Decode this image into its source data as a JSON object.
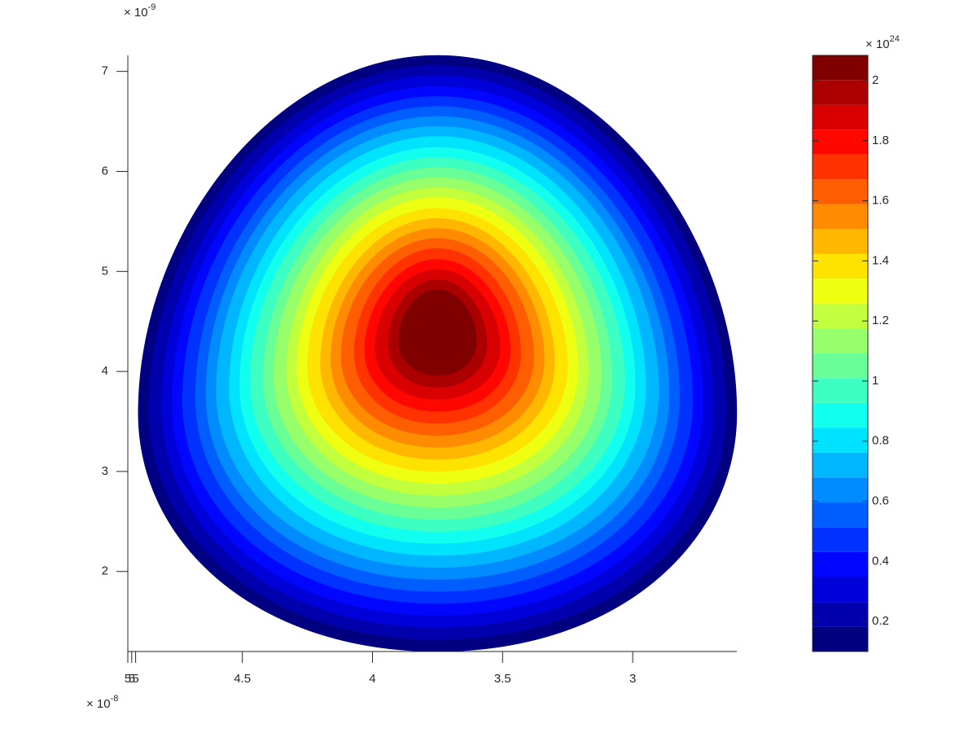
{
  "chart_data": {
    "type": "contourf",
    "colormap": "jet",
    "exponent_base": "× 10",
    "x_exponent": "-8",
    "y_exponent": "-9",
    "c_exponent": "24",
    "xlim": [
      4.94,
      2.6
    ],
    "xticks": [
      {
        "value": 4.94,
        "label": "5"
      },
      {
        "value": 4.925,
        "label": "5"
      },
      {
        "value": 4.91,
        "label": "5"
      },
      4.5,
      4,
      3.5,
      3
    ],
    "ylim": [
      1.2,
      7.16
    ],
    "yticks": [
      2,
      3,
      4,
      5,
      6,
      7
    ],
    "clim": [
      0.1,
      2.084
    ],
    "cticks": [
      0.2,
      0.4,
      0.6,
      0.8,
      1,
      1.2,
      1.4,
      1.6,
      1.8,
      2
    ],
    "contours": [
      {
        "level": 0.1,
        "xrange": [
          4.9,
          2.6
        ],
        "yrange": [
          1.2,
          7.16
        ]
      },
      {
        "level": 0.183,
        "xrange": [
          4.86,
          2.64
        ],
        "yrange": [
          1.32,
          7.06
        ]
      },
      {
        "level": 0.265,
        "xrange": [
          4.81,
          2.69
        ],
        "yrange": [
          1.44,
          6.96
        ]
      },
      {
        "level": 0.348,
        "xrange": [
          4.77,
          2.73
        ],
        "yrange": [
          1.56,
          6.85
        ]
      },
      {
        "level": 0.431,
        "xrange": [
          4.73,
          2.77
        ],
        "yrange": [
          1.68,
          6.75
        ]
      },
      {
        "level": 0.514,
        "xrange": [
          4.68,
          2.82
        ],
        "yrange": [
          1.8,
          6.65
        ]
      },
      {
        "level": 0.596,
        "xrange": [
          4.64,
          2.86
        ],
        "yrange": [
          1.92,
          6.55
        ]
      },
      {
        "level": 0.679,
        "xrange": [
          4.6,
          2.9
        ],
        "yrange": [
          2.04,
          6.45
        ]
      },
      {
        "level": 0.762,
        "xrange": [
          4.55,
          2.95
        ],
        "yrange": [
          2.16,
          6.35
        ]
      },
      {
        "level": 0.844,
        "xrange": [
          4.51,
          2.99
        ],
        "yrange": [
          2.28,
          6.24
        ]
      },
      {
        "level": 0.927,
        "xrange": [
          4.47,
          3.03
        ],
        "yrange": [
          2.4,
          6.14
        ]
      },
      {
        "level": 1.01,
        "xrange": [
          4.42,
          3.08
        ],
        "yrange": [
          2.52,
          6.04
        ]
      },
      {
        "level": 1.092,
        "xrange": [
          4.38,
          3.12
        ],
        "yrange": [
          2.64,
          5.94
        ]
      },
      {
        "level": 1.175,
        "xrange": [
          4.33,
          3.17
        ],
        "yrange": [
          2.76,
          5.84
        ]
      },
      {
        "level": 1.258,
        "xrange": [
          4.29,
          3.21
        ],
        "yrange": [
          2.88,
          5.74
        ]
      },
      {
        "level": 1.341,
        "xrange": [
          4.25,
          3.25
        ],
        "yrange": [
          3.0,
          5.63
        ]
      },
      {
        "level": 1.423,
        "xrange": [
          4.2,
          3.3
        ],
        "yrange": [
          3.12,
          5.53
        ]
      },
      {
        "level": 1.506,
        "xrange": [
          4.16,
          3.34
        ],
        "yrange": [
          3.24,
          5.43
        ]
      },
      {
        "level": 1.589,
        "xrange": [
          4.12,
          3.38
        ],
        "yrange": [
          3.36,
          5.33
        ]
      },
      {
        "level": 1.671,
        "xrange": [
          4.07,
          3.43
        ],
        "yrange": [
          3.48,
          5.23
        ]
      },
      {
        "level": 1.754,
        "xrange": [
          4.03,
          3.47
        ],
        "yrange": [
          3.6,
          5.12
        ]
      },
      {
        "level": 1.837,
        "xrange": [
          3.99,
          3.51
        ],
        "yrange": [
          3.72,
          5.02
        ]
      },
      {
        "level": 1.919,
        "xrange": [
          3.94,
          3.56
        ],
        "yrange": [
          3.84,
          4.92
        ]
      },
      {
        "level": 2.002,
        "xrange": [
          3.9,
          3.6
        ],
        "yrange": [
          3.96,
          4.82
        ]
      }
    ]
  }
}
